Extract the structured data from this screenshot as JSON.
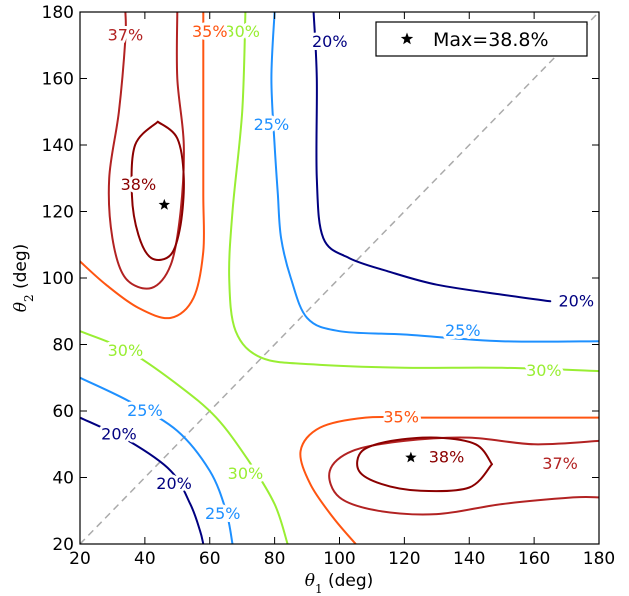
{
  "chart_data": {
    "type": "contour",
    "xlabel": "θ1 (deg)",
    "ylabel": "θ2 (deg)",
    "xlabel_main": "θ",
    "xlabel_sub": "1",
    "xlabel_unit": " (deg)",
    "ylabel_main": "θ",
    "ylabel_sub": "2",
    "ylabel_unit": " (deg)",
    "xlim": [
      20,
      180
    ],
    "ylim": [
      20,
      180
    ],
    "xticks": [
      20,
      40,
      60,
      80,
      100,
      120,
      140,
      160,
      180
    ],
    "yticks": [
      20,
      40,
      60,
      80,
      100,
      120,
      140,
      160,
      180
    ],
    "xtick_labels": [
      "20",
      "40",
      "60",
      "80",
      "100",
      "120",
      "140",
      "160",
      "180"
    ],
    "ytick_labels": [
      "20",
      "40",
      "60",
      "80",
      "100",
      "120",
      "140",
      "160",
      "180"
    ],
    "grid": false,
    "diagonal": {
      "from": [
        20,
        20
      ],
      "to": [
        180,
        180
      ],
      "color": "#aaaaaa",
      "style": "dashed"
    },
    "legend": {
      "label": "Max=38.8%",
      "marker": "star",
      "placement": "top-right"
    },
    "max_markers": [
      [
        46,
        122
      ],
      [
        122,
        46
      ]
    ],
    "levels": [
      {
        "label": "20%",
        "color": "#000080",
        "lines": [
          [
            [
              92,
              180
            ],
            [
              93,
              160
            ],
            [
              93,
              130
            ],
            [
              95,
              112
            ],
            [
              103,
              106
            ],
            [
              115,
              102
            ],
            [
              130,
              98
            ],
            [
              150,
              95
            ],
            [
              165,
              93
            ]
          ],
          [
            [
              20,
              58
            ],
            [
              35,
              51
            ],
            [
              48,
              42
            ],
            [
              54,
              32
            ],
            [
              57,
              24
            ],
            [
              58,
              20
            ]
          ]
        ],
        "labels": [
          [
            97,
            171,
            "20%"
          ],
          [
            173,
            93,
            "20%"
          ],
          [
            32,
            53,
            "20%"
          ],
          [
            49,
            38,
            "20%"
          ]
        ]
      },
      {
        "label": "25%",
        "color": "#1e90ff",
        "lines": [
          [
            [
              80,
              180
            ],
            [
              79,
              160
            ],
            [
              80,
              140
            ],
            [
              81,
              125
            ],
            [
              82,
              112
            ],
            [
              85,
              100
            ],
            [
              90,
              88
            ],
            [
              100,
              84
            ],
            [
              120,
              83
            ],
            [
              150,
              81
            ],
            [
              180,
              81
            ]
          ],
          [
            [
              20,
              70
            ],
            [
              35,
              63
            ],
            [
              50,
              54
            ],
            [
              60,
              42
            ],
            [
              65,
              30
            ],
            [
              67,
              20
            ]
          ]
        ],
        "labels": [
          [
            79,
            146,
            "25%"
          ],
          [
            138,
            84,
            "25%"
          ],
          [
            40,
            60,
            "25%"
          ],
          [
            64,
            29,
            "25%"
          ]
        ]
      },
      {
        "label": "30%",
        "color": "#99ee33",
        "lines": [
          [
            [
              71,
              180
            ],
            [
              70,
              150
            ],
            [
              67,
              120
            ],
            [
              66,
              100
            ],
            [
              68,
              84
            ],
            [
              76,
              76
            ],
            [
              92,
              74
            ],
            [
              120,
              73
            ],
            [
              150,
              73
            ],
            [
              180,
              72
            ]
          ],
          [
            [
              20,
              84
            ],
            [
              35,
              78
            ],
            [
              50,
              68
            ],
            [
              62,
              58
            ],
            [
              72,
              45
            ],
            [
              80,
              32
            ],
            [
              84,
              20
            ]
          ]
        ],
        "labels": [
          [
            70,
            174,
            "30%"
          ],
          [
            163,
            72,
            "30%"
          ],
          [
            34,
            78,
            "30%"
          ],
          [
            71,
            41,
            "30%"
          ]
        ]
      },
      {
        "label": "35%",
        "color": "#ff5511",
        "lines": [
          [
            [
              58,
              180
            ],
            [
              58,
              150
            ],
            [
              58,
              125
            ],
            [
              58,
              108
            ],
            [
              55,
              94
            ],
            [
              48,
              88
            ],
            [
              38,
              91
            ],
            [
              28,
              98
            ],
            [
              20,
              105
            ]
          ],
          [
            [
              180,
              58
            ],
            [
              150,
              58
            ],
            [
              125,
              58
            ],
            [
              108,
              58
            ],
            [
              94,
              55
            ],
            [
              88,
              48
            ],
            [
              91,
              38
            ],
            [
              98,
              28
            ],
            [
              105,
              20
            ]
          ]
        ],
        "labels": [
          [
            60,
            174,
            "35%"
          ],
          [
            119,
            58,
            "35%"
          ]
        ]
      },
      {
        "label": "37%",
        "color": "#b22222",
        "lines": [
          [
            [
              50,
              180
            ],
            [
              50,
              160
            ],
            [
              52,
              140
            ],
            [
              51,
              120
            ],
            [
              48,
              104
            ],
            [
              42,
              97
            ],
            [
              34,
              100
            ],
            [
              30,
              112
            ],
            [
              29,
              130
            ],
            [
              32,
              150
            ],
            [
              34,
              172
            ],
            [
              34,
              180
            ]
          ],
          [
            [
              180,
              51
            ],
            [
              160,
              50
            ],
            [
              140,
              52
            ],
            [
              120,
              51
            ],
            [
              104,
              48
            ],
            [
              97,
              42
            ],
            [
              100,
              34
            ],
            [
              112,
              30
            ],
            [
              130,
              29
            ],
            [
              150,
              32
            ],
            [
              172,
              34
            ],
            [
              180,
              34
            ]
          ]
        ],
        "labels": [
          [
            34,
            173,
            "37%"
          ],
          [
            168,
            44,
            "37%"
          ]
        ]
      },
      {
        "label": "38%",
        "color": "#8b0000",
        "lines": [
          [
            [
              44,
              147
            ],
            [
              50,
              142
            ],
            [
              52,
              130
            ],
            [
              51,
              116
            ],
            [
              48,
              107
            ],
            [
              42,
              106
            ],
            [
              38,
              113
            ],
            [
              36,
              125
            ],
            [
              37,
              140
            ],
            [
              44,
              147
            ]
          ],
          [
            [
              147,
              44
            ],
            [
              142,
              50
            ],
            [
              130,
              52
            ],
            [
              116,
              51
            ],
            [
              107,
              48
            ],
            [
              106,
              42
            ],
            [
              113,
              38
            ],
            [
              125,
              36
            ],
            [
              140,
              37
            ],
            [
              147,
              44
            ]
          ]
        ],
        "labels": [
          [
            38,
            128,
            "38%"
          ],
          [
            133,
            46,
            "38%"
          ]
        ]
      }
    ]
  }
}
